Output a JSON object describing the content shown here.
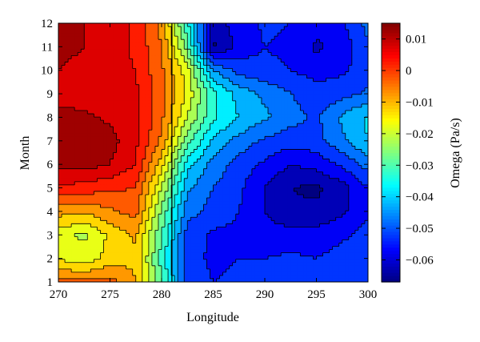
{
  "chart_data": {
    "type": "heatmap",
    "subtype": "filled-contour",
    "xlabel": "Longitude",
    "ylabel": "Month",
    "xlim": [
      270,
      300
    ],
    "ylim": [
      1,
      12
    ],
    "x_ticks": [
      270,
      275,
      280,
      285,
      290,
      295,
      300
    ],
    "y_ticks": [
      1,
      2,
      3,
      4,
      5,
      6,
      7,
      8,
      9,
      10,
      11,
      12
    ],
    "x": [
      270,
      272.5,
      275,
      277.5,
      280,
      282.5,
      285,
      287.5,
      290,
      292.5,
      295,
      297.5,
      300
    ],
    "y": [
      1,
      2,
      3,
      4,
      5,
      6,
      7,
      8,
      9,
      10,
      11,
      12
    ],
    "z": [
      [
        -0.003,
        -0.004,
        -0.003,
        -0.01,
        -0.03,
        -0.052,
        -0.055,
        -0.054,
        -0.053,
        -0.052,
        -0.053,
        -0.052,
        -0.05
      ],
      [
        -0.016,
        -0.018,
        -0.013,
        -0.011,
        -0.032,
        -0.053,
        -0.056,
        -0.055,
        -0.055,
        -0.054,
        -0.055,
        -0.053,
        -0.051
      ],
      [
        -0.018,
        -0.021,
        -0.014,
        -0.009,
        -0.03,
        -0.052,
        -0.056,
        -0.056,
        -0.058,
        -0.058,
        -0.058,
        -0.056,
        -0.053
      ],
      [
        -0.008,
        -0.009,
        -0.006,
        -0.003,
        -0.026,
        -0.048,
        -0.052,
        -0.055,
        -0.06,
        -0.064,
        -0.064,
        -0.061,
        -0.056
      ],
      [
        0.004,
        0.003,
        0.001,
        0.0,
        -0.02,
        -0.044,
        -0.05,
        -0.054,
        -0.06,
        -0.065,
        -0.066,
        -0.062,
        -0.055
      ],
      [
        0.012,
        0.012,
        0.01,
        0.005,
        -0.013,
        -0.038,
        -0.047,
        -0.052,
        -0.056,
        -0.06,
        -0.058,
        -0.054,
        -0.048
      ],
      [
        0.013,
        0.013,
        0.012,
        0.006,
        -0.006,
        -0.028,
        -0.041,
        -0.047,
        -0.051,
        -0.053,
        -0.052,
        -0.046,
        -0.04
      ],
      [
        0.012,
        0.011,
        0.009,
        0.007,
        -0.004,
        -0.02,
        -0.034,
        -0.04,
        -0.044,
        -0.048,
        -0.051,
        -0.044,
        -0.039
      ],
      [
        0.008,
        0.007,
        0.007,
        0.006,
        -0.004,
        -0.016,
        -0.034,
        -0.042,
        -0.046,
        -0.05,
        -0.053,
        -0.052,
        -0.049
      ],
      [
        0.01,
        0.008,
        0.006,
        0.005,
        -0.004,
        -0.018,
        -0.045,
        -0.052,
        -0.054,
        -0.055,
        -0.057,
        -0.056,
        -0.052
      ],
      [
        0.012,
        0.01,
        0.008,
        0.004,
        -0.005,
        -0.028,
        -0.066,
        -0.058,
        -0.055,
        -0.056,
        -0.061,
        -0.058,
        -0.051
      ],
      [
        0.013,
        0.01,
        0.008,
        0.004,
        -0.007,
        -0.034,
        -0.062,
        -0.058,
        -0.054,
        -0.055,
        -0.058,
        -0.056,
        -0.048
      ]
    ],
    "zlim": [
      -0.067,
      0.015
    ],
    "level_step": 0.005,
    "colormap": "jet",
    "vertical_line_x": 281,
    "colorbar": {
      "label": "Omega (Pa/s)",
      "ticks": [
        0.01,
        0,
        -0.01,
        -0.02,
        -0.03,
        -0.04,
        -0.05,
        -0.06
      ],
      "tick_labels": [
        "0.01",
        "0",
        "−0.01",
        "−0.02",
        "−0.03",
        "−0.04",
        "−0.05",
        "−0.06"
      ]
    },
    "grid": false,
    "legend": "none"
  }
}
